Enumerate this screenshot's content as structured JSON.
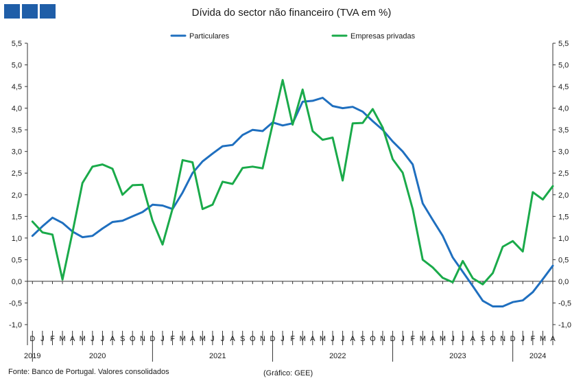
{
  "chart_data": {
    "type": "line",
    "title": "Dívida do sector não financeiro (TVA em %)",
    "source_note": "Fonte: Banco de Portugal. Valores consolidados",
    "credit_note": "(Gráfico: GEE)",
    "ylim": [
      -1.0,
      5.5
    ],
    "yticks": [
      "-1,0",
      "-0,5",
      "0,0",
      "0,5",
      "1,0",
      "1,5",
      "2,0",
      "2,5",
      "3,0",
      "3,5",
      "4,0",
      "4,5",
      "5,0",
      "5,5"
    ],
    "legend_position": "top-center",
    "grid": false,
    "x": [
      "D",
      "J",
      "F",
      "M",
      "A",
      "M",
      "J",
      "J",
      "A",
      "S",
      "O",
      "N",
      "D",
      "J",
      "F",
      "M",
      "A",
      "M",
      "J",
      "J",
      "A",
      "S",
      "O",
      "N",
      "D",
      "J",
      "F",
      "M",
      "A",
      "M",
      "J",
      "J",
      "A",
      "S",
      "O",
      "N",
      "D",
      "J",
      "F",
      "M",
      "A",
      "M",
      "J",
      "J",
      "A",
      "S",
      "O",
      "N",
      "D",
      "J",
      "F",
      "M",
      "A"
    ],
    "years": [
      {
        "label": "2019",
        "start": 0,
        "end": 0
      },
      {
        "label": "2020",
        "start": 1,
        "end": 12
      },
      {
        "label": "2021",
        "start": 13,
        "end": 24
      },
      {
        "label": "2022",
        "start": 25,
        "end": 36
      },
      {
        "label": "2023",
        "start": 37,
        "end": 48
      },
      {
        "label": "2024",
        "start": 49,
        "end": 52
      }
    ],
    "series": [
      {
        "name": "Particulares",
        "color": "#1f6fbf",
        "values": [
          1.05,
          1.27,
          1.47,
          1.35,
          1.15,
          1.02,
          1.05,
          1.22,
          1.37,
          1.4,
          1.5,
          1.6,
          1.77,
          1.75,
          1.67,
          2.05,
          2.5,
          2.77,
          2.95,
          3.12,
          3.15,
          3.38,
          3.5,
          3.47,
          3.67,
          3.6,
          3.65,
          4.15,
          4.17,
          4.24,
          4.05,
          4.0,
          4.03,
          3.92,
          3.7,
          3.5,
          3.23,
          3.0,
          2.7,
          1.8,
          1.42,
          1.05,
          0.55,
          0.22,
          -0.11,
          -0.45,
          -0.58,
          -0.58,
          -0.48,
          -0.44,
          -0.25,
          0.05,
          0.36
        ]
      },
      {
        "name": "Empresas privadas",
        "color": "#1aaa4a",
        "values": [
          1.38,
          1.13,
          1.08,
          0.04,
          1.13,
          2.27,
          2.65,
          2.7,
          2.6,
          2.0,
          2.22,
          2.23,
          1.4,
          0.85,
          1.68,
          2.8,
          2.75,
          1.67,
          1.77,
          2.3,
          2.25,
          2.62,
          2.65,
          2.61,
          3.63,
          4.65,
          3.62,
          4.43,
          3.47,
          3.27,
          3.32,
          2.33,
          3.65,
          3.66,
          3.98,
          3.55,
          2.82,
          2.51,
          1.67,
          0.5,
          0.32,
          0.08,
          -0.02,
          0.47,
          0.07,
          -0.07,
          0.19,
          0.8,
          0.93,
          0.69,
          2.06,
          1.89,
          2.2
        ]
      }
    ]
  },
  "logo_icon": "gee-logo-icon"
}
